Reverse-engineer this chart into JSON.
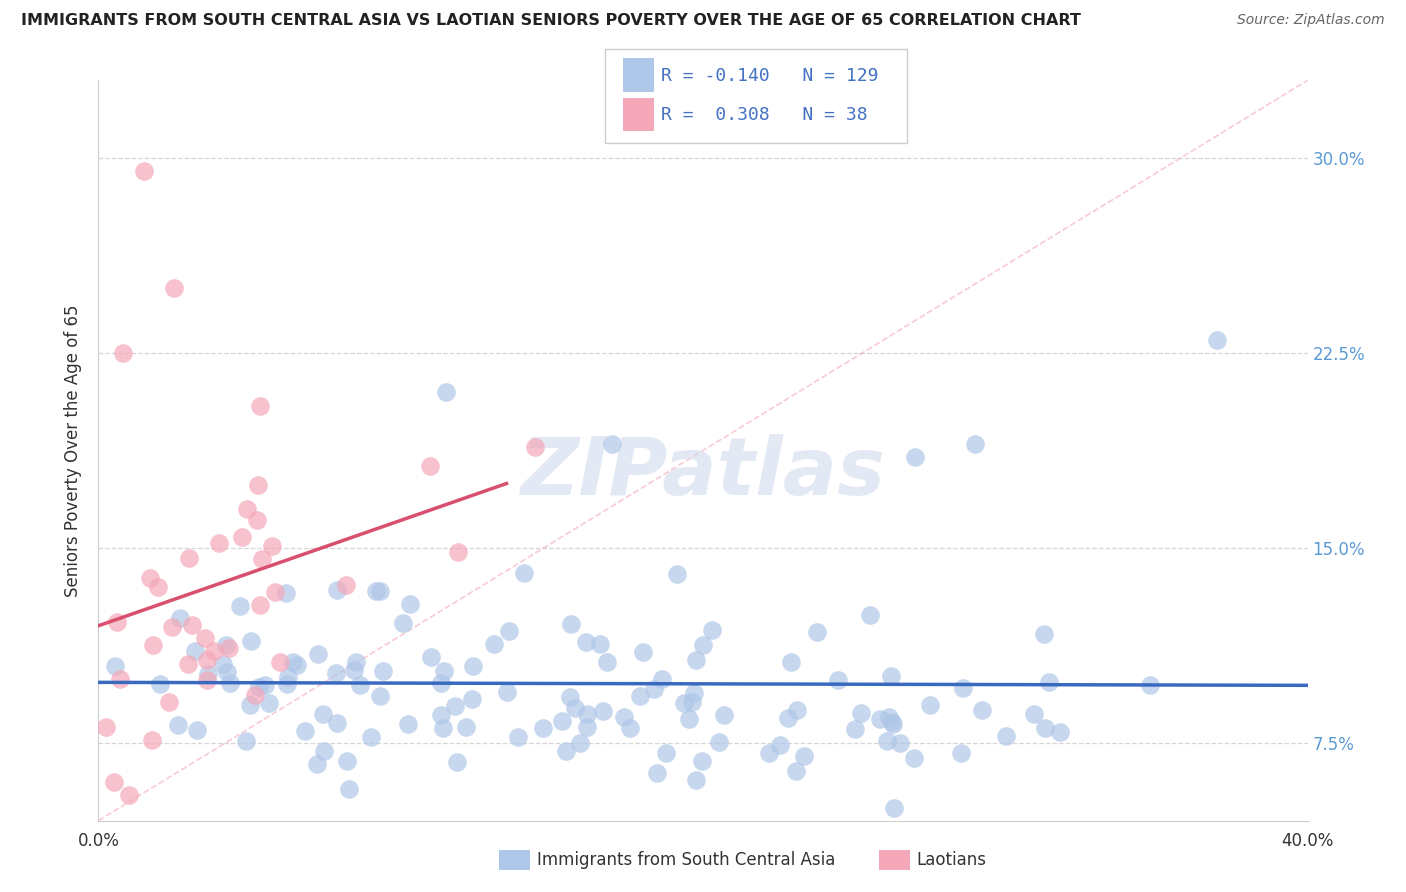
{
  "title": "IMMIGRANTS FROM SOUTH CENTRAL ASIA VS LAOTIAN SENIORS POVERTY OVER THE AGE OF 65 CORRELATION CHART",
  "source": "Source: ZipAtlas.com",
  "ylabel": "Seniors Poverty Over the Age of 65",
  "xlim": [
    0.0,
    40.0
  ],
  "ylim": [
    4.5,
    33.0
  ],
  "yticks": [
    7.5,
    15.0,
    22.5,
    30.0
  ],
  "blue_R": -0.14,
  "blue_N": 129,
  "pink_R": 0.308,
  "pink_N": 38,
  "blue_color": "#aec6e8",
  "pink_color": "#f4a7b9",
  "blue_line_color": "#3a6abf",
  "pink_line_color": "#d94f6e",
  "diag_color": "#f4a7b9",
  "legend_blue_label": "Immigrants from South Central Asia",
  "legend_pink_label": "Laotians",
  "watermark_text": "ZIPatlas",
  "bg_color": "#ffffff",
  "grid_color": "#cccccc",
  "title_color": "#222222",
  "source_color": "#666666",
  "ylabel_color": "#333333",
  "tick_label_color": "#5b9bd5",
  "bottom_legend_color": "#333333"
}
